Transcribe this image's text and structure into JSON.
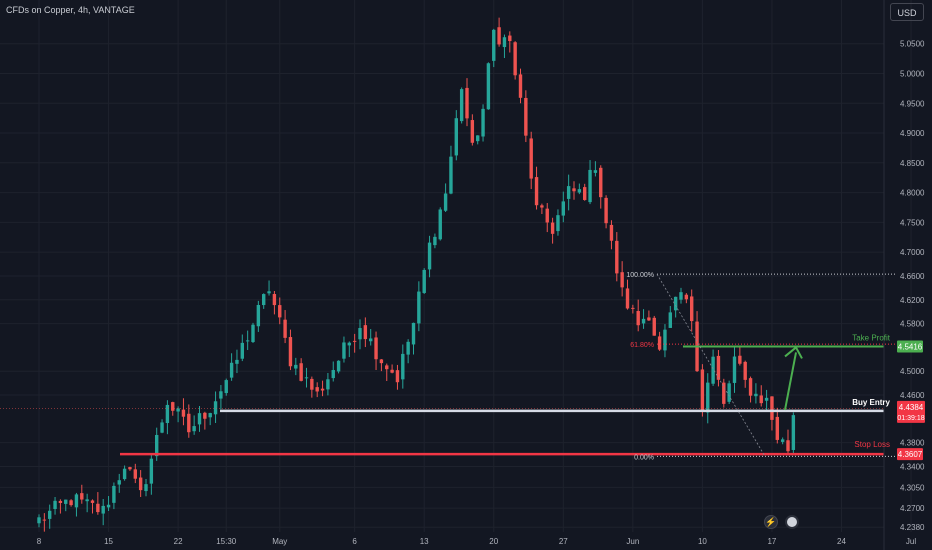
{
  "header": {
    "title": "CFDs on Copper, 4h, VANTAGE",
    "currency_button": "USD"
  },
  "colors": {
    "background": "#131722",
    "grid": "#1e222d",
    "bull": "#26a69a",
    "bear": "#ef5350",
    "axis_text": "#b2b5be",
    "take_profit": "#4caf50",
    "stop_loss": "#f23645",
    "buy_entry": "#d6dbe6",
    "fib_white": "#c9ccd3"
  },
  "chart_data": {
    "type": "candlestick",
    "title": "CFDs on Copper, 4h, VANTAGE",
    "ylim": [
      4.23,
      5.115
    ],
    "y_ticks": [
      "5.0500",
      "5.0000",
      "4.9500",
      "4.9000",
      "4.8500",
      "4.8000",
      "4.7500",
      "4.7000",
      "4.6600",
      "4.6200",
      "4.5800",
      "4.5000",
      "4.4600",
      "4.3800",
      "4.3400",
      "4.3050",
      "4.2700",
      "4.2380"
    ],
    "x_ticks": [
      "8",
      "15",
      "22",
      "15:30",
      "May",
      "6",
      "13",
      "20",
      "27",
      "Jun",
      "10",
      "17",
      "24",
      "Jul"
    ],
    "x_tick_index": [
      0,
      13,
      26,
      35,
      45,
      59,
      72,
      85,
      98,
      111,
      124,
      137,
      150,
      163
    ],
    "close_anchors": [
      [
        0,
        4.25
      ],
      [
        6,
        4.285
      ],
      [
        12,
        4.265
      ],
      [
        16,
        4.345
      ],
      [
        19,
        4.29
      ],
      [
        24,
        4.45
      ],
      [
        28,
        4.4
      ],
      [
        32,
        4.44
      ],
      [
        36,
        4.5
      ],
      [
        43,
        4.64
      ],
      [
        47,
        4.52
      ],
      [
        52,
        4.46
      ],
      [
        56,
        4.52
      ],
      [
        60,
        4.58
      ],
      [
        64,
        4.52
      ],
      [
        67,
        4.49
      ],
      [
        70,
        4.58
      ],
      [
        73,
        4.71
      ],
      [
        76,
        4.8
      ],
      [
        79,
        4.98
      ],
      [
        81,
        4.87
      ],
      [
        83,
        4.94
      ],
      [
        85,
        5.07
      ],
      [
        88,
        5.05
      ],
      [
        90,
        4.95
      ],
      [
        93,
        4.77
      ],
      [
        96,
        4.74
      ],
      [
        99,
        4.8
      ],
      [
        102,
        4.8
      ],
      [
        104,
        4.85
      ],
      [
        106,
        4.75
      ],
      [
        109,
        4.63
      ],
      [
        112,
        4.58
      ],
      [
        114,
        4.6
      ],
      [
        116,
        4.53
      ],
      [
        118,
        4.59
      ],
      [
        120,
        4.63
      ],
      [
        122,
        4.59
      ],
      [
        124,
        4.44
      ],
      [
        126,
        4.52
      ],
      [
        128,
        4.44
      ],
      [
        130,
        4.52
      ],
      [
        132,
        4.48
      ],
      [
        134,
        4.46
      ],
      [
        136,
        4.45
      ],
      [
        138,
        4.39
      ],
      [
        140,
        4.37
      ],
      [
        141,
        4.43
      ]
    ],
    "levels": {
      "take_profit": {
        "label": "Take Profit",
        "price": 4.5416,
        "price_label": "4.5416"
      },
      "buy_entry": {
        "label": "Buy Entry",
        "price": 4.4384,
        "price_label": "4.4384",
        "countdown": "01:39:18"
      },
      "stop_loss": {
        "label": "Stop Loss",
        "price": 4.3607,
        "price_label": "4.3607"
      }
    },
    "fibonacci": [
      {
        "label": "100.00%",
        "price": 4.663
      },
      {
        "label": "61.80%",
        "price": 4.5455
      },
      {
        "label": "0.00%",
        "price": 4.357
      }
    ],
    "grid": true
  }
}
